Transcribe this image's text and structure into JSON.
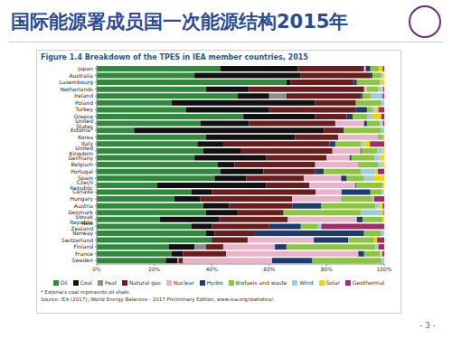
{
  "slide": {
    "title": "国际能源署成员国一次能源结构2015年",
    "page": "- 3 -"
  },
  "chart_data": {
    "type": "bar",
    "title": "Figure 1.4  Breakdown of the TPES in IEA member countries, 2015",
    "orientation": "horizontal",
    "stacked": true,
    "grid": false,
    "legend": "bottom",
    "categories": [
      "Japan",
      "Australia",
      "Luxembourg",
      "Netherlands",
      "Ireland",
      "Poland",
      "Turkey",
      "Greece",
      "United States",
      "Estonia*",
      "Korea",
      "Italy",
      "United Kingdom",
      "Germany",
      "Belgium",
      "Portugal",
      "Spain",
      "Czech Republic",
      "Canada",
      "Hungary",
      "Austria",
      "Denmark",
      "Slovak Republic",
      "New Zealand",
      "Norway",
      "Switzerland",
      "Finland",
      "France",
      "Sweden"
    ],
    "xlim": [
      0,
      100
    ],
    "xticks": [
      {
        "value": 0,
        "label": "0%"
      },
      {
        "value": 20,
        "label": "20%"
      },
      {
        "value": 40,
        "label": "40%"
      },
      {
        "value": 60,
        "label": "60%"
      },
      {
        "value": 80,
        "label": "80%"
      },
      {
        "value": 100,
        "label": "100%"
      }
    ],
    "series": [
      {
        "name": "Oil",
        "color": "#2f8a3c",
        "values": [
          43,
          34,
          66,
          38,
          49,
          26,
          31,
          51,
          36,
          13,
          38,
          35,
          37,
          34,
          42,
          43,
          41,
          21,
          33,
          27,
          37,
          38,
          22,
          33,
          38,
          40,
          25,
          26,
          24
        ]
      },
      {
        "name": "Coal",
        "color": "#111111",
        "values": [
          27,
          37,
          1.5,
          15,
          11,
          50,
          29,
          25,
          17,
          66,
          31,
          9,
          13,
          25,
          6,
          15,
          11,
          38,
          7,
          9,
          9,
          11,
          20.5,
          7,
          3,
          0.5,
          9,
          4,
          4
        ]
      },
      {
        "name": "Peat",
        "color": "#8c8c8c",
        "values": [
          0,
          0,
          0,
          0,
          6,
          0,
          0,
          0,
          0,
          0,
          0,
          0,
          0,
          0,
          0,
          0,
          0,
          0,
          0,
          0,
          0,
          0,
          0,
          0,
          0,
          0,
          4,
          0,
          0.5
        ]
      },
      {
        "name": "Natural gas",
        "color": "#6b1c1c",
        "values": [
          23,
          24,
          22,
          40,
          26,
          14,
          30,
          11,
          30,
          7,
          15,
          37,
          32,
          21,
          28,
          18,
          20,
          15,
          36.2,
          32,
          22,
          16,
          24,
          20,
          14,
          12,
          6,
          15,
          1.5
        ]
      },
      {
        "name": "Nuclear",
        "color": "#e9b3c9",
        "values": [
          0.6,
          0,
          0,
          1,
          0,
          0,
          0,
          0,
          10,
          0,
          14,
          0,
          9.8,
          8,
          15,
          0,
          13,
          16,
          9,
          17,
          0,
          0,
          24,
          0,
          0,
          23,
          18,
          46,
          31
        ]
      },
      {
        "name": "Hydro",
        "color": "#1f3a6e",
        "values": [
          1.6,
          1,
          1,
          0,
          0.5,
          0.2,
          4,
          2,
          1,
          0,
          0.2,
          2,
          0.3,
          0.6,
          0.1,
          3,
          2,
          0.4,
          10,
          0.1,
          10,
          0,
          2,
          11,
          38,
          12,
          4,
          2,
          14
        ]
      },
      {
        "name": "Biofuels and waste",
        "color": "#8cc63f",
        "values": [
          3,
          3,
          8,
          4,
          3,
          9,
          2,
          5,
          4.5,
          13,
          1.3,
          9,
          5.5,
          8,
          6.7,
          13,
          6,
          9,
          4,
          11,
          19,
          27,
          7,
          6,
          6,
          9,
          31,
          5.5,
          24
        ]
      },
      {
        "name": "Wind",
        "color": "#9fcbe3",
        "values": [
          0.1,
          0.5,
          0.5,
          1.3,
          4,
          0.8,
          1,
          2,
          0.8,
          1,
          0.1,
          1,
          2,
          2,
          1.5,
          5,
          3.5,
          0.1,
          0.7,
          0.3,
          1.5,
          7,
          0,
          1,
          1,
          0,
          1,
          0.6,
          1
        ]
      },
      {
        "name": "Solar",
        "color": "#f2d400",
        "values": [
          1.2,
          0.5,
          1,
          0.4,
          0,
          0,
          1,
          3,
          0.3,
          0,
          0.3,
          2,
          0.4,
          1.4,
          0.7,
          0.8,
          3.5,
          0.5,
          0.1,
          0.1,
          1,
          0.8,
          0.5,
          0.1,
          0,
          1,
          0,
          0.3,
          0
        ]
      },
      {
        "name": "Geothermal",
        "color": "#9e2f6a",
        "values": [
          0.5,
          0,
          0,
          0.3,
          0.5,
          0,
          2,
          1,
          0.4,
          0,
          0.1,
          5,
          0,
          0,
          0,
          2.2,
          0,
          0,
          0,
          3.5,
          0.5,
          0.2,
          0,
          21.9,
          0,
          2.5,
          2,
          0.6,
          0
        ]
      }
    ],
    "notes": [
      "* Estonia's coal represents oil shale.",
      "Source: IEA (2017), World Energy Balances - 2017 Preliminary Edition, www.iea.org/statistics/."
    ]
  }
}
